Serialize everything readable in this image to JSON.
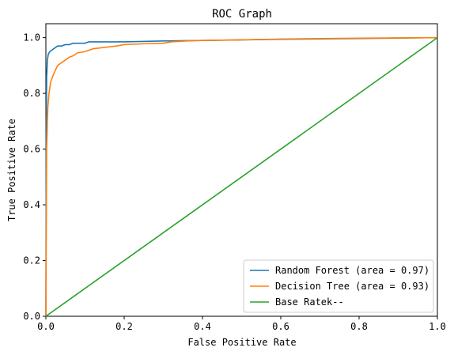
{
  "chart_data": {
    "type": "line",
    "title": "ROC Graph",
    "xlabel": "False Positive Rate",
    "ylabel": "True Positive Rate",
    "xlim": [
      0,
      1
    ],
    "ylim": [
      0,
      1.05
    ],
    "xticks": [
      "0.0",
      "0.2",
      "0.4",
      "0.6",
      "0.8",
      "1.0"
    ],
    "yticks": [
      "0.0",
      "0.2",
      "0.4",
      "0.6",
      "0.8",
      "1.0"
    ],
    "xtick_values": [
      0,
      0.2,
      0.4,
      0.6,
      0.8,
      1.0
    ],
    "ytick_values": [
      0,
      0.2,
      0.4,
      0.6,
      0.8,
      1.0
    ],
    "grid": false,
    "legend_position": "bottom-right",
    "series": [
      {
        "name": "Random Forest (area = 0.97)",
        "color": "#1f77b4",
        "x": [
          0,
          0.001,
          0.002,
          0.004,
          0.006,
          0.01,
          0.015,
          0.02,
          0.03,
          0.04,
          0.05,
          0.06,
          0.07,
          0.09,
          0.1,
          0.11,
          0.15,
          0.2,
          0.3,
          0.4,
          0.5,
          0.6,
          0.8,
          1.0
        ],
        "y": [
          0,
          0.65,
          0.86,
          0.92,
          0.94,
          0.95,
          0.955,
          0.96,
          0.97,
          0.97,
          0.975,
          0.975,
          0.98,
          0.98,
          0.98,
          0.985,
          0.985,
          0.985,
          0.988,
          0.99,
          0.992,
          0.994,
          0.997,
          1.0
        ]
      },
      {
        "name": "Decision Tree (area = 0.93)",
        "color": "#ff7f0e",
        "x": [
          0,
          0.002,
          0.005,
          0.008,
          0.012,
          0.02,
          0.03,
          0.04,
          0.05,
          0.06,
          0.07,
          0.08,
          0.1,
          0.12,
          0.15,
          0.18,
          0.2,
          0.25,
          0.3,
          0.32,
          0.36,
          0.4,
          0.5,
          0.6,
          0.8,
          1.0
        ],
        "y": [
          0,
          0.6,
          0.75,
          0.8,
          0.84,
          0.87,
          0.9,
          0.91,
          0.92,
          0.93,
          0.935,
          0.945,
          0.95,
          0.96,
          0.965,
          0.97,
          0.975,
          0.978,
          0.98,
          0.985,
          0.988,
          0.99,
          0.992,
          0.995,
          0.998,
          1.0
        ]
      },
      {
        "name": "Base Ratek--",
        "color": "#2ca02c",
        "x": [
          0,
          1
        ],
        "y": [
          0,
          1
        ]
      }
    ]
  }
}
